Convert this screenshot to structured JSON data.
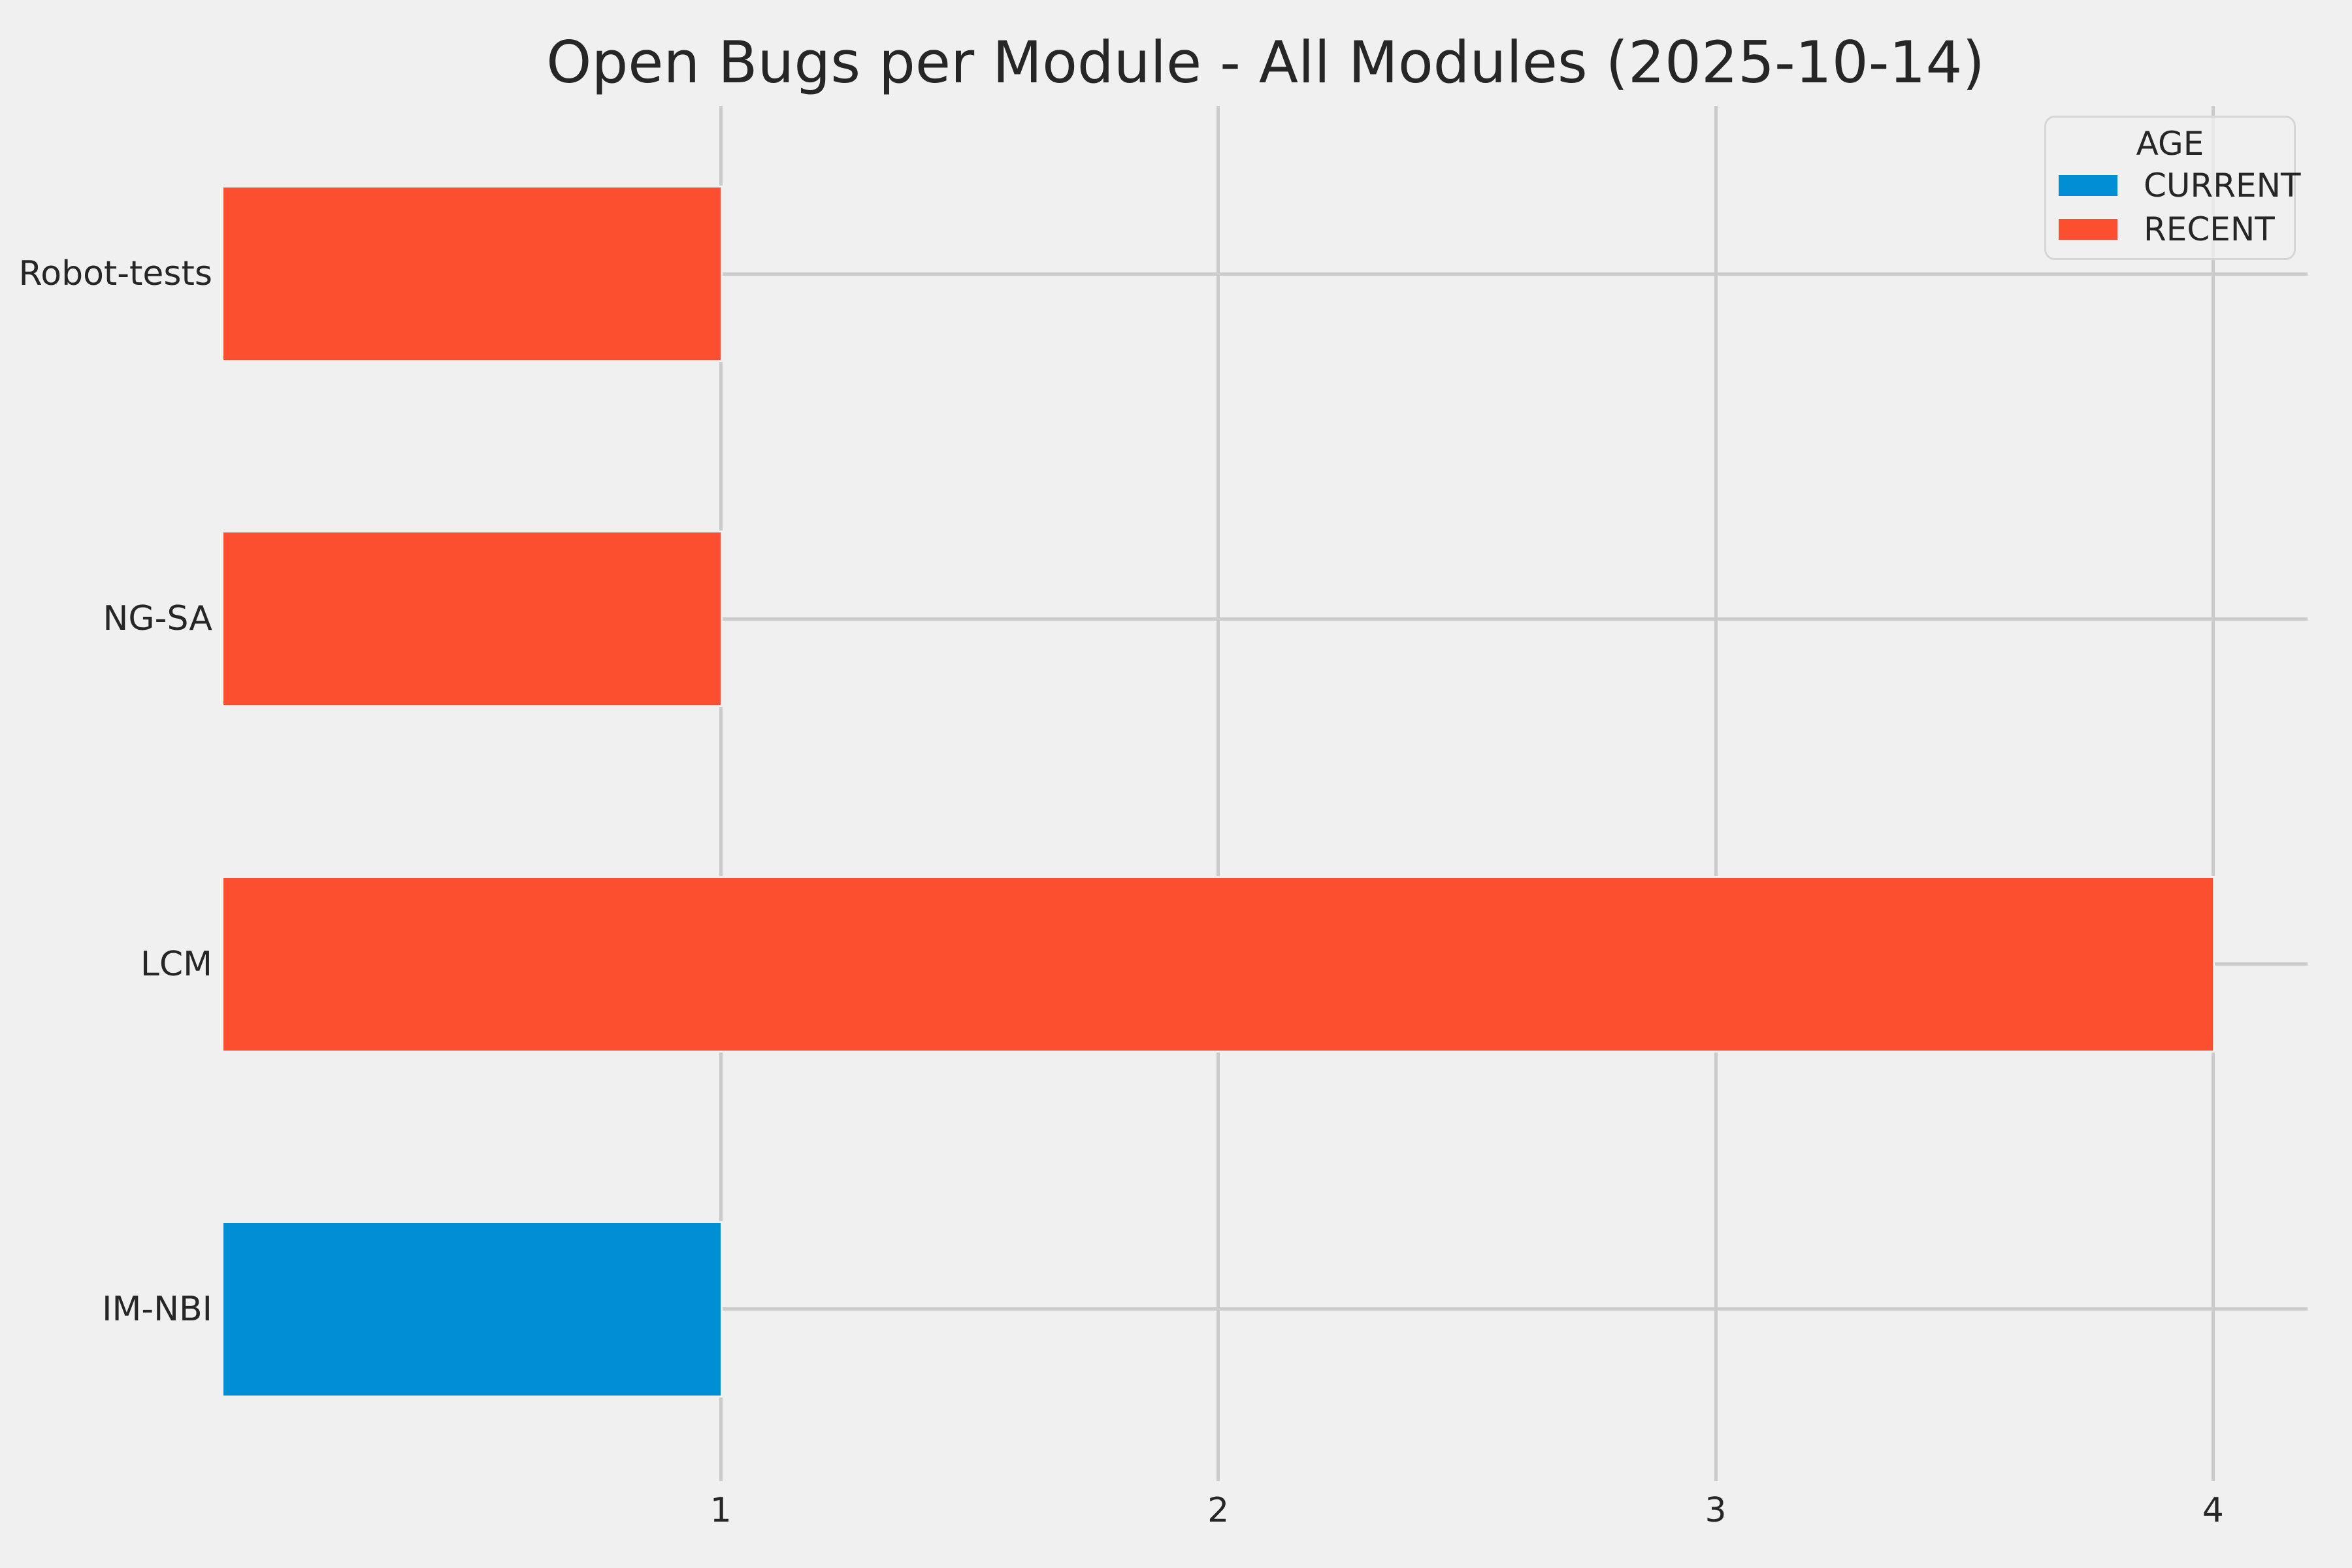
{
  "chart_data": {
    "type": "bar",
    "orientation": "horizontal",
    "title": "Open Bugs per Module - All Modules (2025-10-14)",
    "categories": [
      "Robot-tests",
      "NG-SA",
      "LCM",
      "IM-NBI"
    ],
    "values": [
      1,
      1,
      4,
      1
    ],
    "bar_series": [
      "RECENT",
      "RECENT",
      "RECENT",
      "CURRENT"
    ],
    "xlabel": "",
    "ylabel": "",
    "x_ticks": [
      "1",
      "2",
      "3",
      "4"
    ],
    "xlim": [
      0,
      4.19
    ],
    "grid": true,
    "legend": {
      "title": "AGE",
      "position": "upper-right",
      "entries": [
        {
          "label": "CURRENT",
          "color": "#008fd5"
        },
        {
          "label": "RECENT",
          "color": "#fc4f30"
        }
      ]
    },
    "colors": {
      "CURRENT": "#008fd5",
      "RECENT": "#fc4f30",
      "background": "#f0f0f0",
      "grid": "#cbcbcb",
      "text": "#262626"
    }
  }
}
